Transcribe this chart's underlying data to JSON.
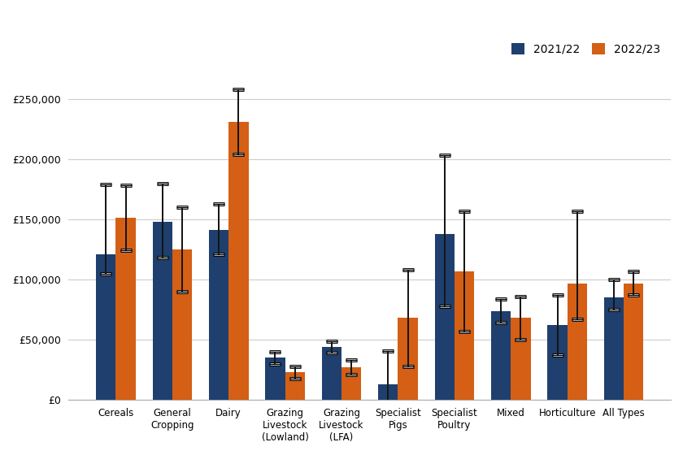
{
  "categories": [
    "Cereals",
    "General\nCropping",
    "Dairy",
    "Grazing\nLivestock\n(Lowland)",
    "Grazing\nLivestock\n(LFA)",
    "Specialist\nPigs",
    "Specialist\nPoultry",
    "Mixed",
    "Horticulture",
    "All Types"
  ],
  "values_2122": [
    121000,
    148000,
    141000,
    35000,
    44000,
    13000,
    138000,
    74000,
    62000,
    85000
  ],
  "values_2223": [
    151000,
    125000,
    231000,
    23000,
    27000,
    68000,
    107000,
    68000,
    97000,
    97000
  ],
  "err_2122_lo": [
    16000,
    30000,
    20000,
    5000,
    5000,
    28000,
    60000,
    10000,
    25000,
    10000
  ],
  "err_2122_hi": [
    58000,
    32000,
    22000,
    5000,
    5000,
    28000,
    65000,
    10000,
    25000,
    15000
  ],
  "err_2223_lo": [
    27000,
    35000,
    27000,
    5000,
    6000,
    40000,
    50000,
    18000,
    30000,
    10000
  ],
  "err_2223_hi": [
    27000,
    35000,
    27000,
    5000,
    6000,
    40000,
    50000,
    18000,
    60000,
    10000
  ],
  "color_2122": "#1f3f6e",
  "color_2223": "#d45f15",
  "bar_width": 0.35,
  "ylim": [
    0,
    270000
  ],
  "yticks": [
    0,
    50000,
    100000,
    150000,
    200000,
    250000
  ],
  "legend_labels": [
    "2021/22",
    "2022/23"
  ],
  "background_color": "#ffffff",
  "grid_color": "#cccccc"
}
